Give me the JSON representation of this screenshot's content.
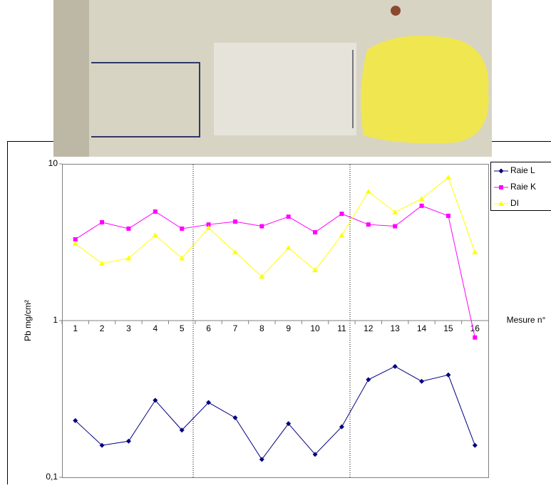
{
  "chart_data": {
    "type": "line",
    "log_y": true,
    "y_label": "Pb mg/cm²",
    "x_label": "Mesure n°",
    "categories": [
      "1",
      "2",
      "3",
      "4",
      "5",
      "6",
      "7",
      "8",
      "9",
      "10",
      "11",
      "12",
      "13",
      "14",
      "15",
      "16"
    ],
    "ylim": [
      0.1,
      10
    ],
    "yticks": [
      {
        "value": 0.1,
        "label": "0,1"
      },
      1,
      10
    ],
    "x_axis_at": 1,
    "legend": "right",
    "series": [
      {
        "name": "Raie L",
        "color": "#000080",
        "marker": "diamond",
        "values": [
          0.23,
          0.16,
          0.17,
          0.31,
          0.2,
          0.3,
          0.24,
          0.13,
          0.22,
          0.14,
          0.21,
          0.42,
          0.51,
          0.41,
          0.45,
          0.16
        ]
      },
      {
        "name": "Raie K",
        "color": "#ff00ff",
        "marker": "square",
        "values": [
          3.3,
          4.24,
          3.86,
          4.96,
          3.86,
          4.1,
          4.28,
          4.0,
          4.6,
          3.66,
          4.8,
          4.1,
          4.0,
          5.4,
          4.66,
          0.78
        ]
      },
      {
        "name": "DI",
        "color": "#ffff00",
        "marker": "triangle",
        "values": [
          3.1,
          2.31,
          2.5,
          3.5,
          2.5,
          3.9,
          2.73,
          1.91,
          2.91,
          2.1,
          3.5,
          6.65,
          4.91,
          5.99,
          8.2,
          2.73
        ]
      }
    ]
  }
}
